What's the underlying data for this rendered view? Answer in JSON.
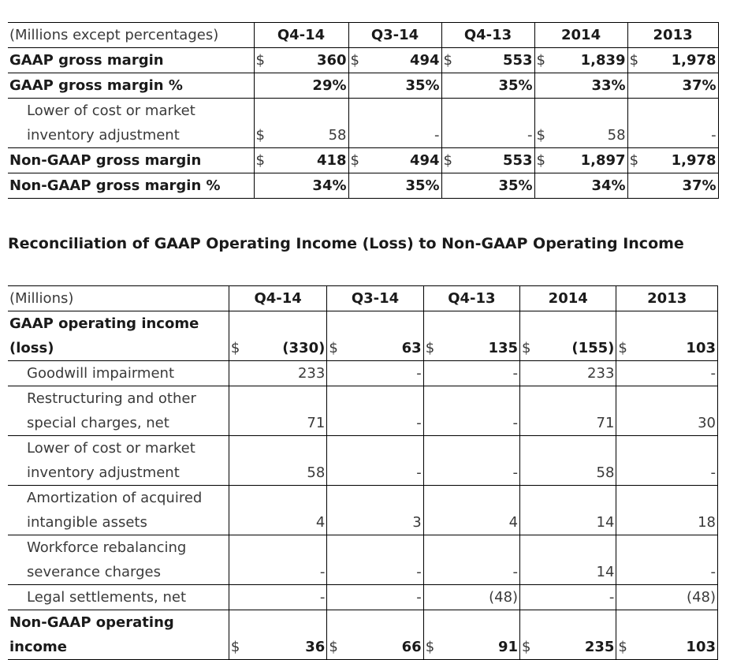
{
  "table1": {
    "headers": [
      "(Millions except percentages)",
      "Q4-14",
      "Q3-14",
      "Q4-13",
      "2014",
      "2013"
    ],
    "rows": [
      {
        "label": "GAAP gross margin",
        "bold": true,
        "cells": [
          {
            "cur": "$",
            "val": "360"
          },
          {
            "cur": "$",
            "val": "494"
          },
          {
            "cur": "$",
            "val": "553"
          },
          {
            "cur": "$",
            "val": "1,839"
          },
          {
            "cur": "$",
            "val": "1,978"
          }
        ]
      },
      {
        "label": "GAAP gross margin %",
        "bold": true,
        "cells": [
          {
            "cur": "",
            "val": "29%"
          },
          {
            "cur": "",
            "val": "35%"
          },
          {
            "cur": "",
            "val": "35%"
          },
          {
            "cur": "",
            "val": "33%"
          },
          {
            "cur": "",
            "val": "37%"
          }
        ]
      },
      {
        "label_lines": [
          "Lower of cost or market",
          "inventory adjustment"
        ],
        "bold": false,
        "cells": [
          {
            "cur": "$",
            "val": "58"
          },
          {
            "cur": "",
            "val": "-"
          },
          {
            "cur": "",
            "val": "-"
          },
          {
            "cur": "$",
            "val": "58"
          },
          {
            "cur": "",
            "val": "-"
          }
        ]
      },
      {
        "label": "Non-GAAP gross margin",
        "bold": true,
        "cells": [
          {
            "cur": "$",
            "val": "418"
          },
          {
            "cur": "$",
            "val": "494"
          },
          {
            "cur": "$",
            "val": "553"
          },
          {
            "cur": "$",
            "val": "1,897"
          },
          {
            "cur": "$",
            "val": "1,978"
          }
        ]
      },
      {
        "label": "Non-GAAP gross margin %",
        "bold": true,
        "cells": [
          {
            "cur": "",
            "val": "34%"
          },
          {
            "cur": "",
            "val": "35%"
          },
          {
            "cur": "",
            "val": "35%"
          },
          {
            "cur": "",
            "val": "34%"
          },
          {
            "cur": "",
            "val": "37%"
          }
        ]
      }
    ]
  },
  "section_title": "Reconciliation of GAAP Operating Income (Loss) to Non-GAAP Operating Income",
  "table2": {
    "headers": [
      "(Millions)",
      "Q4-14",
      "Q3-14",
      "Q4-13",
      "2014",
      "2013"
    ],
    "rows": [
      {
        "label_lines": [
          "GAAP operating income",
          "(loss)"
        ],
        "bold": true,
        "cells": [
          {
            "cur": "$",
            "val": "(330)"
          },
          {
            "cur": "$",
            "val": "63"
          },
          {
            "cur": "$",
            "val": "135"
          },
          {
            "cur": "$",
            "val": "(155)"
          },
          {
            "cur": "$",
            "val": "103"
          }
        ]
      },
      {
        "label": "Goodwill impairment",
        "bold": false,
        "cells": [
          {
            "cur": "",
            "val": "233"
          },
          {
            "cur": "",
            "val": "-"
          },
          {
            "cur": "",
            "val": "-"
          },
          {
            "cur": "",
            "val": "233"
          },
          {
            "cur": "",
            "val": "-"
          }
        ]
      },
      {
        "label_lines": [
          "Restructuring and other",
          "special charges, net"
        ],
        "bold": false,
        "cells": [
          {
            "cur": "",
            "val": "71"
          },
          {
            "cur": "",
            "val": "-"
          },
          {
            "cur": "",
            "val": "-"
          },
          {
            "cur": "",
            "val": "71"
          },
          {
            "cur": "",
            "val": "30"
          }
        ]
      },
      {
        "label_lines": [
          "Lower of cost or market",
          "inventory adjustment"
        ],
        "bold": false,
        "cells": [
          {
            "cur": "",
            "val": "58"
          },
          {
            "cur": "",
            "val": "-"
          },
          {
            "cur": "",
            "val": "-"
          },
          {
            "cur": "",
            "val": "58"
          },
          {
            "cur": "",
            "val": "-"
          }
        ]
      },
      {
        "label_lines": [
          "Amortization of acquired",
          "intangible assets"
        ],
        "bold": false,
        "cells": [
          {
            "cur": "",
            "val": "4"
          },
          {
            "cur": "",
            "val": "3"
          },
          {
            "cur": "",
            "val": "4"
          },
          {
            "cur": "",
            "val": "14"
          },
          {
            "cur": "",
            "val": "18"
          }
        ]
      },
      {
        "label_lines": [
          "Workforce rebalancing",
          "severance charges"
        ],
        "bold": false,
        "cells": [
          {
            "cur": "",
            "val": "-"
          },
          {
            "cur": "",
            "val": "-"
          },
          {
            "cur": "",
            "val": "-"
          },
          {
            "cur": "",
            "val": "14"
          },
          {
            "cur": "",
            "val": "-"
          }
        ]
      },
      {
        "label": "Legal settlements, net",
        "bold": false,
        "cells": [
          {
            "cur": "",
            "val": "-"
          },
          {
            "cur": "",
            "val": "-"
          },
          {
            "cur": "",
            "val": "(48)"
          },
          {
            "cur": "",
            "val": "-"
          },
          {
            "cur": "",
            "val": "(48)"
          }
        ]
      },
      {
        "label_lines": [
          "Non-GAAP operating",
          "income"
        ],
        "bold": true,
        "cells": [
          {
            "cur": "$",
            "val": "36"
          },
          {
            "cur": "$",
            "val": "66"
          },
          {
            "cur": "$",
            "val": "91"
          },
          {
            "cur": "$",
            "val": "235"
          },
          {
            "cur": "$",
            "val": "103"
          }
        ]
      }
    ]
  }
}
